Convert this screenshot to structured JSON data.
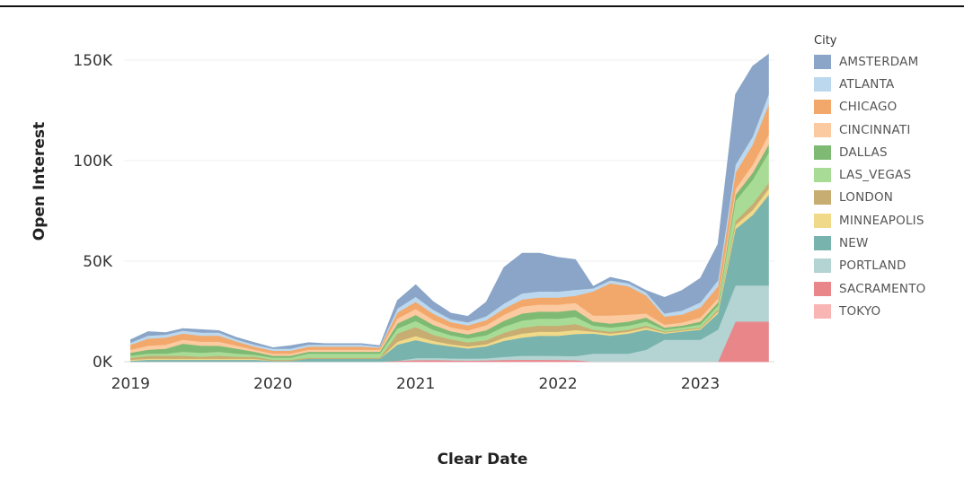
{
  "chart_data": {
    "type": "area",
    "stacked": true,
    "title": "",
    "xlabel": "Clear Date",
    "ylabel": "Open Interest",
    "x_ticks": [
      "2019",
      "2020",
      "2021",
      "2022",
      "2023"
    ],
    "y_ticks": [
      "0K",
      "50K",
      "100K",
      "150K"
    ],
    "ylim": [
      0,
      160000
    ],
    "xlim": [
      "2018-12-15",
      "2023-07-10"
    ],
    "grid": "horizontal",
    "legend_title": "City",
    "legend_position": "right",
    "x": [
      "2019-01-01",
      "2019-02-15",
      "2019-04-01",
      "2019-05-15",
      "2019-07-01",
      "2019-08-15",
      "2019-10-01",
      "2019-11-15",
      "2020-01-01",
      "2020-02-15",
      "2020-04-01",
      "2020-05-15",
      "2020-07-01",
      "2020-08-15",
      "2020-10-01",
      "2020-11-15",
      "2021-01-01",
      "2021-02-15",
      "2021-04-01",
      "2021-05-15",
      "2021-07-01",
      "2021-08-15",
      "2021-10-01",
      "2021-11-15",
      "2022-01-01",
      "2022-02-15",
      "2022-04-01",
      "2022-05-15",
      "2022-07-01",
      "2022-08-15",
      "2022-10-01",
      "2022-11-15",
      "2023-01-01",
      "2023-02-15",
      "2023-04-01",
      "2023-05-15",
      "2023-06-25"
    ],
    "series": [
      {
        "name": "TOKYO",
        "color": "#f9b4b4",
        "values": [
          0,
          0,
          0,
          0,
          0,
          0,
          0,
          0,
          0,
          0,
          0,
          0,
          0,
          0,
          0,
          0,
          0,
          0,
          0,
          0,
          0,
          0,
          0,
          0,
          0,
          0,
          0,
          0,
          0,
          0,
          0,
          0,
          0,
          0,
          0,
          0,
          0
        ]
      },
      {
        "name": "SACRAMENTO",
        "color": "#e8868a",
        "values": [
          0,
          0,
          0,
          0,
          0,
          0,
          0,
          0,
          0,
          0,
          0,
          0,
          0,
          0,
          0,
          500,
          800,
          900,
          700,
          600,
          700,
          900,
          1000,
          1000,
          900,
          800,
          0,
          0,
          0,
          0,
          0,
          0,
          0,
          0,
          20000,
          20000,
          20000
        ]
      },
      {
        "name": "PORTLAND",
        "color": "#b3d4d2",
        "values": [
          0,
          0,
          0,
          0,
          0,
          0,
          0,
          0,
          0,
          0,
          0,
          0,
          0,
          0,
          0,
          0,
          1000,
          1000,
          1000,
          1000,
          1000,
          1500,
          2000,
          2000,
          2000,
          2000,
          4000,
          4000,
          4000,
          6000,
          11000,
          11000,
          11000,
          16000,
          18000,
          18000,
          18000
        ]
      },
      {
        "name": "NEW",
        "color": "#78b3ae",
        "values": [
          500,
          1000,
          1000,
          1000,
          1000,
          1000,
          1000,
          1000,
          500,
          500,
          1500,
          1500,
          1500,
          1500,
          1500,
          8000,
          9000,
          7000,
          6000,
          5000,
          6000,
          8000,
          9000,
          10000,
          10000,
          11000,
          10000,
          9000,
          10000,
          10000,
          3000,
          4000,
          5000,
          8000,
          28000,
          35000,
          45000
        ]
      },
      {
        "name": "MINNEAPOLIS",
        "color": "#f1d98a",
        "values": [
          500,
          500,
          500,
          500,
          500,
          500,
          500,
          500,
          0,
          0,
          0,
          0,
          0,
          0,
          0,
          1500,
          2000,
          1500,
          1000,
          1000,
          1000,
          1500,
          2000,
          2000,
          2000,
          2000,
          1000,
          1000,
          1000,
          1000,
          500,
          500,
          500,
          1000,
          2000,
          2500,
          3000
        ]
      },
      {
        "name": "LONDON",
        "color": "#c7ad71",
        "values": [
          1000,
          1500,
          1500,
          1500,
          1000,
          1500,
          1000,
          1000,
          500,
          500,
          500,
          500,
          500,
          500,
          500,
          4000,
          4500,
          3000,
          2500,
          2000,
          2000,
          2500,
          3000,
          3000,
          3000,
          3000,
          1000,
          1000,
          1000,
          1000,
          500,
          500,
          500,
          1000,
          2000,
          3000,
          3000
        ]
      },
      {
        "name": "LAS_VEGAS",
        "color": "#a8dc96",
        "values": [
          1000,
          1000,
          1000,
          2000,
          2000,
          2000,
          1500,
          1000,
          1000,
          1000,
          2000,
          2000,
          2000,
          2000,
          2000,
          2500,
          3000,
          2500,
          2000,
          2000,
          2500,
          3000,
          3500,
          3500,
          3500,
          3500,
          2000,
          2000,
          2000,
          2000,
          1000,
          1000,
          1500,
          2000,
          10000,
          12000,
          15000
        ]
      },
      {
        "name": "DALLAS",
        "color": "#7fba74",
        "values": [
          1500,
          2000,
          2500,
          4000,
          3500,
          3000,
          2500,
          1500,
          1000,
          1000,
          1000,
          1000,
          1000,
          1000,
          1000,
          2500,
          3000,
          2500,
          2000,
          2000,
          2500,
          3000,
          3500,
          3500,
          3500,
          3500,
          2000,
          2000,
          2000,
          2000,
          1000,
          1000,
          1500,
          1500,
          3000,
          3500,
          4000
        ]
      },
      {
        "name": "CINCINNATI",
        "color": "#fbcaa0",
        "values": [
          1500,
          2000,
          2000,
          2000,
          2000,
          2000,
          1500,
          1000,
          1000,
          1000,
          1000,
          1000,
          1000,
          1000,
          1000,
          2500,
          3000,
          2500,
          2000,
          2000,
          2500,
          3000,
          3500,
          3500,
          3500,
          3500,
          3000,
          4000,
          3500,
          2000,
          1500,
          1500,
          2000,
          2000,
          3000,
          4000,
          5000
        ]
      },
      {
        "name": "CHICAGO",
        "color": "#f2a86b",
        "values": [
          2500,
          3500,
          3500,
          3000,
          3000,
          3000,
          2000,
          1500,
          1500,
          1500,
          1500,
          1500,
          1500,
          1500,
          1000,
          3000,
          3500,
          3000,
          2500,
          2500,
          2500,
          3000,
          3500,
          3500,
          3500,
          3500,
          12000,
          16000,
          14000,
          9000,
          4000,
          4000,
          5000,
          6000,
          8000,
          10000,
          15000
        ]
      },
      {
        "name": "ATLANTA",
        "color": "#bcd8ee",
        "values": [
          1000,
          1500,
          1500,
          1500,
          1500,
          1500,
          1000,
          1000,
          1000,
          1000,
          1000,
          1000,
          1000,
          1000,
          500,
          2000,
          2500,
          2000,
          1500,
          1500,
          2000,
          2500,
          3000,
          3000,
          3000,
          3000,
          1500,
          1500,
          1500,
          1500,
          1500,
          2000,
          2500,
          3000,
          4000,
          4000,
          5000
        ]
      },
      {
        "name": "AMSTERDAM",
        "color": "#8aa5c8",
        "values": [
          1500,
          2000,
          1000,
          1000,
          1500,
          1000,
          1000,
          1000,
          500,
          1500,
          1000,
          500,
          500,
          500,
          500,
          4000,
          6000,
          4000,
          3000,
          3000,
          7000,
          18000,
          20000,
          19000,
          17000,
          15000,
          1000,
          1500,
          1000,
          1000,
          8000,
          10000,
          12000,
          18000,
          35000,
          35000,
          20000
        ]
      }
    ]
  }
}
